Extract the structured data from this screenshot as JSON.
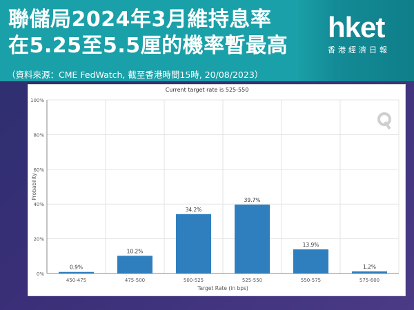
{
  "header": {
    "title_line1": "聯儲局2024年3月維持息率",
    "title_line2": "在5.25至5.5厘的機率暫最高",
    "source": "（資料來源：CME FedWatch, 截至香港時間15時, 20/08/2023）"
  },
  "logo": {
    "main": "hket",
    "sub": "香港經濟日報"
  },
  "chart_data": {
    "type": "bar",
    "title": "Current target rate is 525-550",
    "xlabel": "Target Rate (in bps)",
    "ylabel": "Probability",
    "categories": [
      "450-475",
      "475-500",
      "500-525",
      "525-550",
      "550-575",
      "575-600"
    ],
    "values": [
      0.9,
      10.2,
      34.2,
      39.7,
      13.9,
      1.2
    ],
    "value_labels": [
      "0.9%",
      "10.2%",
      "34.2%",
      "39.7%",
      "13.9%",
      "1.2%"
    ],
    "ylim": [
      0,
      100
    ],
    "yticks": [
      0,
      20,
      40,
      60,
      80,
      100
    ],
    "ytick_labels": [
      "0%",
      "20%",
      "40%",
      "60%",
      "80%",
      "100%"
    ],
    "grid": true,
    "colors": {
      "bar": "#2f7fbf",
      "grid": "#e3e3e3",
      "axis": "#888888"
    }
  }
}
